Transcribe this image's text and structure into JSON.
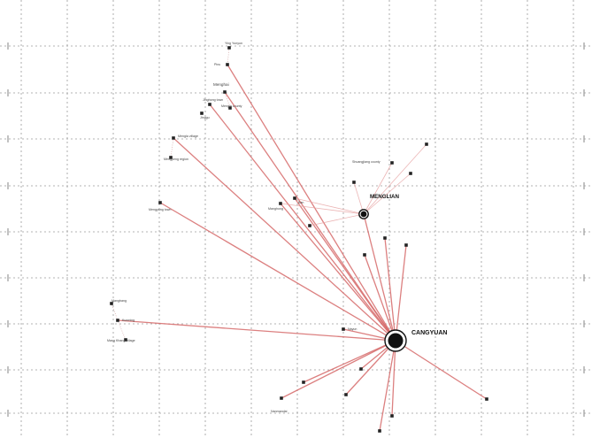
{
  "map": {
    "hubs": [
      {
        "id": "cangyuan",
        "label": "CANGYUAN"
      },
      {
        "id": "menglian",
        "label": "MENGLIAN"
      }
    ],
    "places": [
      {
        "id": "p_top_a",
        "label": "Ying Yunyun"
      },
      {
        "id": "p_top_b",
        "label": "Pinu"
      },
      {
        "id": "p_menghai",
        "label": "Menghai"
      },
      {
        "id": "p_mh_a",
        "label": "Jinghong town"
      },
      {
        "id": "p_mh_b",
        "label": "Mengla county"
      },
      {
        "id": "p_mh_c",
        "label": "Jinggu"
      },
      {
        "id": "p_w1",
        "label": "Mengla village"
      },
      {
        "id": "p_w1b",
        "label": "Mengpeng region"
      },
      {
        "id": "p_w2",
        "label": "Mengyang town"
      },
      {
        "id": "p_c1",
        "label": "Manghong"
      },
      {
        "id": "p_c2",
        "label": "Ban"
      },
      {
        "id": "p_ml_a",
        "label": "Shuangjiang county"
      },
      {
        "id": "p_west_a",
        "label": "Kunming"
      },
      {
        "id": "p_west_b",
        "label": "Mangbang"
      },
      {
        "id": "p_west_c",
        "label": "Mang Khang village"
      },
      {
        "id": "p_mid",
        "label": "Nayun"
      },
      {
        "id": "p_south_a",
        "label": "Nanmandai"
      }
    ]
  }
}
